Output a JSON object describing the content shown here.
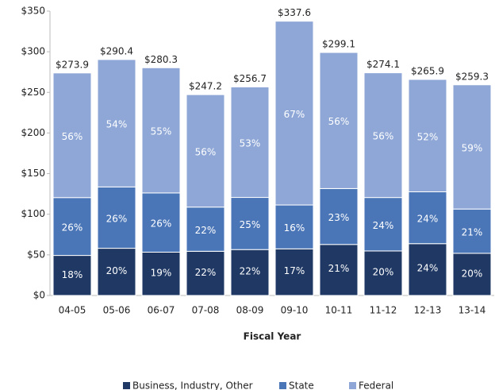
{
  "chart_data": {
    "type": "stacked_bar",
    "x_label": "Fiscal Year",
    "categories": [
      "04-05",
      "05-06",
      "06-07",
      "07-08",
      "08-09",
      "09-10",
      "10-11",
      "11-12",
      "12-13",
      "13-14"
    ],
    "series": [
      {
        "name": "Business, Industry, Other",
        "color": "#1f3864",
        "values": [
          49.3,
          58.1,
          53.3,
          54.4,
          56.5,
          57.4,
          62.8,
          54.8,
          63.8,
          51.9
        ],
        "value_labels": [
          "18%",
          "20%",
          "19%",
          "22%",
          "22%",
          "17%",
          "21%",
          "20%",
          "24%",
          "20%"
        ]
      },
      {
        "name": "State",
        "color": "#4a76b8",
        "values": [
          71.2,
          75.5,
          72.9,
          54.4,
          64.2,
          54.0,
          68.8,
          65.8,
          63.8,
          54.5
        ],
        "value_labels": [
          "26%",
          "26%",
          "26%",
          "22%",
          "25%",
          "16%",
          "23%",
          "24%",
          "24%",
          "21%"
        ]
      },
      {
        "name": "Federal",
        "color": "#8ea7d6",
        "values": [
          153.4,
          156.8,
          154.1,
          138.4,
          136.0,
          226.2,
          167.5,
          153.5,
          138.3,
          152.9
        ],
        "value_labels": [
          "56%",
          "54%",
          "55%",
          "56%",
          "53%",
          "67%",
          "56%",
          "56%",
          "52%",
          "59%"
        ]
      }
    ],
    "totals": [
      273.9,
      290.4,
      280.3,
      247.2,
      256.7,
      337.6,
      299.1,
      274.1,
      265.9,
      259.3
    ],
    "total_labels": [
      "$273.9",
      "$290.4",
      "$280.3",
      "$247.2",
      "$256.7",
      "$337.6",
      "$299.1",
      "$274.1",
      "$265.9",
      "$259.3"
    ],
    "ylim": [
      0,
      350
    ],
    "yticks": [
      {
        "value": 0,
        "label": "$0"
      },
      {
        "value": 50,
        "label": "$50"
      },
      {
        "value": 100,
        "label": "$100"
      },
      {
        "value": 150,
        "label": "$150"
      },
      {
        "value": 200,
        "label": "$200"
      },
      {
        "value": 250,
        "label": "$250"
      },
      {
        "value": 300,
        "label": "$300"
      },
      {
        "value": 350,
        "label": "$350"
      }
    ],
    "legend": "bottom"
  }
}
